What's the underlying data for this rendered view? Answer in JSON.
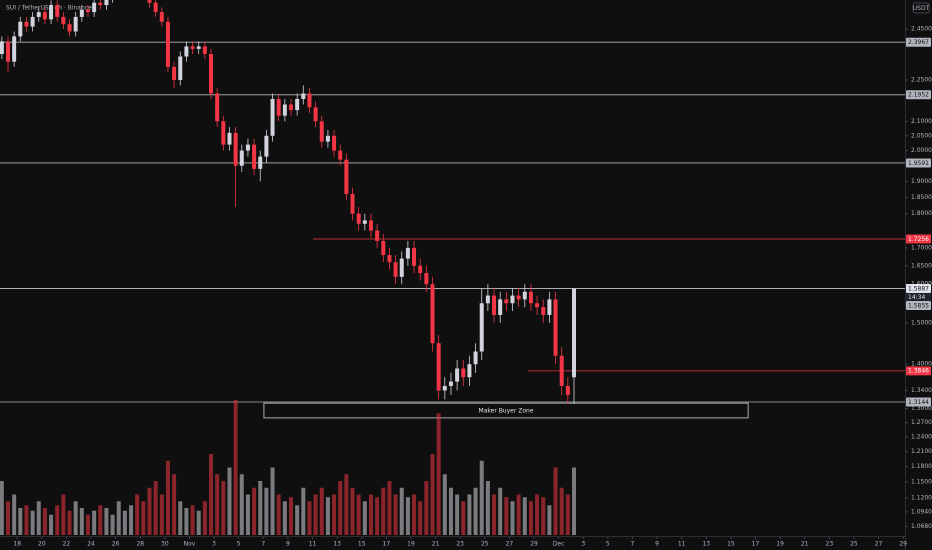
{
  "chart_data": {
    "type": "candlestick",
    "title": "SUI / TetherUS · 4h · Binance",
    "currency": "USDT",
    "log_scale": true,
    "grid": false,
    "up_color": "#d1d4dc",
    "down_color": "#f23645",
    "xlim": [
      -0.3,
      146.8
    ],
    "ylim": [
      1.0527,
      2.5716
    ],
    "volume_lim": [
      0,
      100
    ],
    "xticks": [
      {
        "value": 2.5,
        "label": "18"
      },
      {
        "value": 6.5,
        "label": "20"
      },
      {
        "value": 10.5,
        "label": "22"
      },
      {
        "value": 14.5,
        "label": "24"
      },
      {
        "value": 18.5,
        "label": "26"
      },
      {
        "value": 22.5,
        "label": "28"
      },
      {
        "value": 26.5,
        "label": "30"
      },
      {
        "value": 30.5,
        "label": "Nov"
      },
      {
        "value": 34.5,
        "label": "3"
      },
      {
        "value": 38.5,
        "label": "5"
      },
      {
        "value": 42.5,
        "label": "7"
      },
      {
        "value": 46.5,
        "label": "9"
      },
      {
        "value": 50.5,
        "label": "11"
      },
      {
        "value": 54.5,
        "label": "13"
      },
      {
        "value": 58.5,
        "label": "15"
      },
      {
        "value": 62.5,
        "label": "17"
      },
      {
        "value": 66.5,
        "label": "19"
      },
      {
        "value": 70.5,
        "label": "21"
      },
      {
        "value": 74.5,
        "label": "23"
      },
      {
        "value": 78.5,
        "label": "25"
      },
      {
        "value": 82.5,
        "label": "27"
      },
      {
        "value": 86.5,
        "label": "29"
      },
      {
        "value": 90.5,
        "label": "Dec"
      },
      {
        "value": 94.5,
        "label": "3"
      },
      {
        "value": 98.5,
        "label": "5"
      },
      {
        "value": 102.5,
        "label": "7"
      },
      {
        "value": 106.5,
        "label": "9"
      },
      {
        "value": 110.5,
        "label": "11"
      },
      {
        "value": 114.5,
        "label": "13"
      },
      {
        "value": 118.5,
        "label": "15"
      },
      {
        "value": 122.5,
        "label": "17"
      },
      {
        "value": 126.5,
        "label": "19"
      },
      {
        "value": 130.5,
        "label": "21"
      },
      {
        "value": 134.5,
        "label": "23"
      },
      {
        "value": 138.5,
        "label": "25"
      },
      {
        "value": 142.5,
        "label": "27"
      },
      {
        "value": 146.5,
        "label": "29"
      }
    ],
    "yticks": [
      {
        "value": 2.45,
        "label": "2.4500"
      },
      {
        "value": 2.25,
        "label": "2.2500"
      },
      {
        "value": 2.1,
        "label": "2.1000"
      },
      {
        "value": 2.05,
        "label": "2.0500"
      },
      {
        "value": 2.0,
        "label": "2.0000"
      },
      {
        "value": 1.9,
        "label": "1.9000"
      },
      {
        "value": 1.85,
        "label": "1.8500"
      },
      {
        "value": 1.8,
        "label": "1.8000"
      },
      {
        "value": 1.7,
        "label": "1.7000"
      },
      {
        "value": 1.65,
        "label": "1.6500"
      },
      {
        "value": 1.6,
        "label": "1.6000"
      },
      {
        "value": 1.5,
        "label": "1.5000"
      },
      {
        "value": 1.4,
        "label": "1.4000"
      },
      {
        "value": 1.34,
        "label": "1.3400"
      },
      {
        "value": 1.3,
        "label": "1.3000"
      },
      {
        "value": 1.27,
        "label": "1.2700"
      },
      {
        "value": 1.24,
        "label": "1.2400"
      },
      {
        "value": 1.21,
        "label": "1.2100"
      },
      {
        "value": 1.18,
        "label": "1.1800"
      },
      {
        "value": 1.15,
        "label": "1.1500"
      },
      {
        "value": 1.12,
        "label": "1.1200"
      },
      {
        "value": 1.094,
        "label": "1.0940"
      },
      {
        "value": 1.068,
        "label": "1.0680"
      }
    ],
    "open": [
      2.35,
      2.4,
      2.32,
      2.42,
      2.48,
      2.46,
      2.5,
      2.52,
      2.49,
      2.55,
      2.5,
      2.47,
      2.44,
      2.5,
      2.53,
      2.52,
      2.56,
      2.55,
      2.58,
      2.6,
      2.62,
      2.63,
      2.64,
      2.62,
      2.6,
      2.56,
      2.52,
      2.48,
      2.3,
      2.25,
      2.34,
      2.38,
      2.37,
      2.38,
      2.35,
      2.2,
      2.1,
      2.02,
      2.06,
      1.95,
      2.0,
      2.02,
      1.94,
      1.98,
      2.05,
      2.18,
      2.12,
      2.16,
      2.14,
      2.18,
      2.2,
      2.15,
      2.1,
      2.03,
      2.05,
      2.0,
      1.97,
      1.86,
      1.8,
      1.77,
      1.78,
      1.75,
      1.72,
      1.68,
      1.66,
      1.62,
      1.67,
      1.7,
      1.65,
      1.63,
      1.6,
      1.45,
      1.34,
      1.35,
      1.36,
      1.39,
      1.37,
      1.4,
      1.43,
      1.55,
      1.57,
      1.52,
      1.56,
      1.55,
      1.57,
      1.56,
      1.58,
      1.55,
      1.54,
      1.52,
      1.56,
      1.42,
      1.35,
      1.37
    ],
    "high": [
      2.42,
      2.42,
      2.44,
      2.5,
      2.5,
      2.52,
      2.54,
      2.54,
      2.57,
      2.57,
      2.52,
      2.49,
      2.52,
      2.55,
      2.55,
      2.58,
      2.58,
      2.6,
      2.62,
      2.64,
      2.65,
      2.66,
      2.66,
      2.64,
      2.62,
      2.58,
      2.54,
      2.5,
      2.32,
      2.36,
      2.4,
      2.4,
      2.4,
      2.4,
      2.37,
      2.22,
      2.12,
      2.08,
      2.08,
      2.02,
      2.04,
      2.04,
      2.0,
      2.07,
      2.2,
      2.2,
      2.18,
      2.18,
      2.2,
      2.23,
      2.22,
      2.17,
      2.12,
      2.07,
      2.07,
      2.02,
      1.99,
      1.88,
      1.82,
      1.8,
      1.8,
      1.77,
      1.74,
      1.7,
      1.68,
      1.69,
      1.72,
      1.72,
      1.67,
      1.65,
      1.62,
      1.47,
      1.37,
      1.38,
      1.41,
      1.41,
      1.42,
      1.45,
      1.59,
      1.6,
      1.59,
      1.58,
      1.58,
      1.59,
      1.59,
      1.6,
      1.6,
      1.57,
      1.56,
      1.58,
      1.58,
      1.44,
      1.37,
      1.5887
    ],
    "low": [
      2.33,
      2.28,
      2.3,
      2.4,
      2.44,
      2.44,
      2.48,
      2.47,
      2.47,
      2.48,
      2.45,
      2.42,
      2.42,
      2.48,
      2.5,
      2.5,
      2.53,
      2.53,
      2.56,
      2.58,
      2.6,
      2.61,
      2.6,
      2.58,
      2.54,
      2.5,
      2.46,
      2.28,
      2.22,
      2.23,
      2.32,
      2.35,
      2.35,
      2.33,
      2.18,
      2.08,
      2.0,
      2.0,
      1.82,
      1.93,
      1.98,
      1.92,
      1.9,
      1.96,
      2.03,
      2.1,
      2.1,
      2.12,
      2.12,
      2.16,
      2.13,
      2.08,
      2.01,
      2.01,
      1.98,
      1.95,
      1.84,
      1.78,
      1.75,
      1.75,
      1.73,
      1.7,
      1.66,
      1.64,
      1.6,
      1.6,
      1.65,
      1.63,
      1.61,
      1.58,
      1.43,
      1.32,
      1.32,
      1.33,
      1.34,
      1.35,
      1.35,
      1.38,
      1.41,
      1.53,
      1.5,
      1.5,
      1.53,
      1.53,
      1.54,
      1.54,
      1.53,
      1.52,
      1.5,
      1.5,
      1.4,
      1.33,
      1.31,
      1.31
    ],
    "close": [
      2.4,
      2.32,
      2.42,
      2.48,
      2.46,
      2.5,
      2.52,
      2.49,
      2.55,
      2.5,
      2.47,
      2.44,
      2.5,
      2.53,
      2.52,
      2.56,
      2.55,
      2.58,
      2.6,
      2.62,
      2.63,
      2.64,
      2.62,
      2.6,
      2.56,
      2.52,
      2.48,
      2.3,
      2.25,
      2.34,
      2.38,
      2.37,
      2.38,
      2.35,
      2.2,
      2.1,
      2.02,
      2.06,
      1.95,
      2.0,
      2.02,
      1.94,
      1.98,
      2.05,
      2.18,
      2.12,
      2.16,
      2.14,
      2.18,
      2.2,
      2.15,
      2.1,
      2.03,
      2.05,
      2.0,
      1.97,
      1.86,
      1.8,
      1.77,
      1.78,
      1.75,
      1.72,
      1.68,
      1.66,
      1.62,
      1.67,
      1.7,
      1.65,
      1.63,
      1.6,
      1.45,
      1.34,
      1.35,
      1.36,
      1.39,
      1.37,
      1.4,
      1.43,
      1.55,
      1.57,
      1.52,
      1.56,
      1.55,
      1.57,
      1.56,
      1.58,
      1.55,
      1.54,
      1.52,
      1.56,
      1.42,
      1.35,
      1.33,
      1.5887
    ],
    "volume": [
      40,
      25,
      30,
      20,
      22,
      18,
      25,
      20,
      15,
      22,
      30,
      18,
      25,
      20,
      15,
      18,
      22,
      20,
      15,
      25,
      18,
      22,
      30,
      25,
      35,
      40,
      30,
      55,
      45,
      25,
      20,
      22,
      18,
      25,
      60,
      45,
      40,
      50,
      100,
      45,
      30,
      35,
      40,
      35,
      50,
      30,
      25,
      28,
      22,
      35,
      25,
      30,
      35,
      28,
      30,
      40,
      45,
      35,
      30,
      25,
      30,
      28,
      35,
      40,
      30,
      35,
      28,
      30,
      25,
      40,
      60,
      90,
      45,
      35,
      30,
      25,
      30,
      35,
      55,
      40,
      30,
      35,
      28,
      25,
      30,
      28,
      25,
      30,
      28,
      22,
      50,
      35,
      30,
      50
    ],
    "levels": [
      {
        "value": 2.3967,
        "color": "#b2b5be"
      },
      {
        "value": 2.1952,
        "color": "#b2b5be"
      },
      {
        "value": 1.9591,
        "color": "#b2b5be"
      },
      {
        "value": 1.7256,
        "color": "#f23645",
        "from": 50.6
      },
      {
        "value": 1.3846,
        "color": "#f23645",
        "from": 85.5
      },
      {
        "value": 1.3144,
        "color": "#b2b5be"
      }
    ],
    "last_price": {
      "value": 1.5887,
      "countdown": "14:34",
      "color": "#e0e3eb"
    },
    "price_labels": [
      {
        "value": 1.5855,
        "color": "#b2b5be"
      }
    ],
    "zone": {
      "text": "Maker Buyer Zone",
      "from": 42.6,
      "to": 121.3,
      "top": 1.312,
      "bottom": 1.28
    }
  }
}
